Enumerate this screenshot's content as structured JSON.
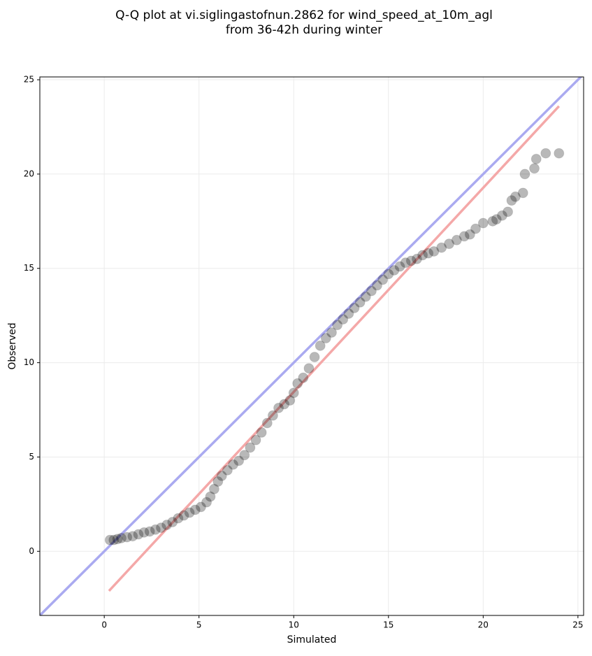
{
  "chart_data": {
    "type": "scatter",
    "title": [
      "Q-Q plot at vi.siglingastofnun.2862 for wind_speed_at_10m_agl",
      "from 36-42h during winter"
    ],
    "x_label": "Simulated",
    "y_label": "Observed",
    "xlim": [
      -3.4,
      25.3
    ],
    "ylim": [
      -3.4,
      25.15
    ],
    "xticks": [
      0,
      5,
      10,
      15,
      20,
      25
    ],
    "yticks": [
      0,
      5,
      10,
      15,
      20,
      25
    ],
    "grid": true,
    "series": [
      {
        "color": "#000000",
        "x": [
          0.3,
          0.5,
          0.7,
          0.9,
          1.2,
          1.5,
          1.8,
          2.1,
          2.4,
          2.7,
          3.0,
          3.3,
          3.6,
          3.9,
          4.2,
          4.5,
          4.8,
          5.1,
          5.4,
          5.6,
          5.8,
          6.0,
          6.2,
          6.5,
          6.8,
          7.1,
          7.4,
          7.7,
          8.0,
          8.3,
          8.6,
          8.9,
          9.2,
          9.5,
          9.8,
          10.0,
          10.2,
          10.5,
          10.8,
          11.1,
          11.4,
          11.7,
          12.0,
          12.3,
          12.6,
          12.9,
          13.2,
          13.5,
          13.8,
          14.1,
          14.4,
          14.7,
          15.0,
          15.3,
          15.6,
          15.9,
          16.2,
          16.5,
          16.8,
          17.1,
          17.4,
          17.8,
          18.2,
          18.6,
          19.0,
          19.3,
          19.6,
          20.0,
          20.5,
          20.7,
          21.0,
          21.3,
          21.5,
          21.7,
          22.1,
          22.2,
          22.7,
          22.8,
          23.3,
          24.0
        ],
        "y": [
          0.6,
          0.6,
          0.65,
          0.7,
          0.75,
          0.8,
          0.9,
          1.0,
          1.05,
          1.15,
          1.25,
          1.4,
          1.55,
          1.75,
          1.9,
          2.05,
          2.2,
          2.35,
          2.6,
          2.9,
          3.3,
          3.7,
          4.0,
          4.3,
          4.6,
          4.8,
          5.1,
          5.5,
          5.9,
          6.3,
          6.8,
          7.2,
          7.6,
          7.8,
          8.0,
          8.4,
          8.9,
          9.2,
          9.7,
          10.3,
          10.9,
          11.3,
          11.6,
          12.0,
          12.3,
          12.6,
          12.9,
          13.2,
          13.5,
          13.8,
          14.1,
          14.4,
          14.7,
          14.9,
          15.1,
          15.3,
          15.4,
          15.5,
          15.7,
          15.8,
          15.9,
          16.1,
          16.3,
          16.5,
          16.7,
          16.8,
          17.1,
          17.4,
          17.5,
          17.6,
          17.8,
          18.0,
          18.6,
          18.8,
          19.0,
          20.0,
          20.3,
          20.8,
          21.1,
          21.1
        ]
      }
    ],
    "lines": [
      {
        "color": "#aaaaf0",
        "x": [
          -3.4,
          25.3
        ],
        "y": [
          -3.4,
          25.3
        ]
      },
      {
        "color": "#f4a8a8",
        "x": [
          0.25,
          24
        ],
        "y": [
          -2.1,
          23.6
        ]
      }
    ]
  }
}
